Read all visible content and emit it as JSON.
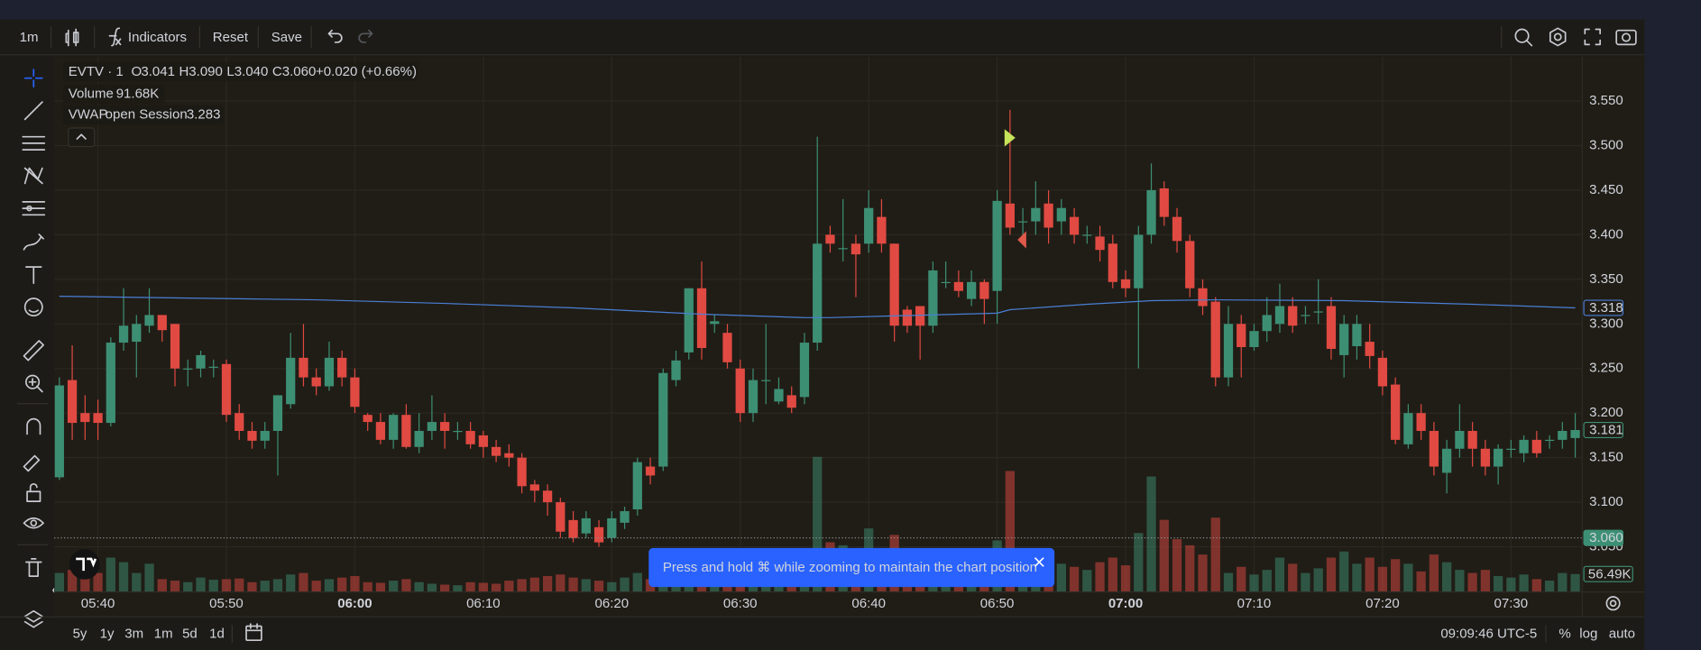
{
  "toolbar": {
    "interval": "1m",
    "indicators": "Indicators",
    "reset": "Reset",
    "save": "Save"
  },
  "range_bar": {
    "ranges": [
      "5y",
      "1y",
      "3m",
      "1m",
      "5d",
      "1d"
    ],
    "clock": "09:09:46 UTC-5",
    "percent": "%",
    "log": "log",
    "auto": "auto"
  },
  "toast": {
    "text": "Press and hold ⌘ while zooming to maintain the chart position"
  },
  "chart_data": {
    "type": "candlestick",
    "legend": {
      "symbol": "EVTV · 1",
      "ohlc": [
        {
          "key": "O",
          "value": "3.041"
        },
        {
          "key": "H",
          "value": "3.090"
        },
        {
          "key": "L",
          "value": "3.040"
        },
        {
          "key": "C",
          "value": "3.060"
        }
      ],
      "change": "+0.020 (+0.66%)",
      "volume_name": "Volume",
      "volume_value": "91.68K",
      "vwap_name": "VWAP",
      "vwap_params": "open Session",
      "vwap_value": "3.283"
    },
    "up_color": "#3d8f74",
    "down_color": "#e04a42",
    "vwap_color": "#4a7fd6",
    "open": [
      3.128,
      3.237,
      3.2,
      3.2,
      3.189,
      3.279,
      3.28,
      3.298,
      3.31,
      3.3,
      3.25,
      3.25,
      3.252,
      3.255,
      3.2,
      3.18,
      3.169,
      3.18,
      3.21,
      3.262,
      3.24,
      3.23,
      3.262,
      3.24,
      3.198,
      3.19,
      3.17,
      3.198,
      3.162,
      3.18,
      3.19,
      3.18,
      3.18,
      3.175,
      3.162,
      3.155,
      3.15,
      3.12,
      3.113,
      3.1,
      3.08,
      3.065,
      3.072,
      3.06,
      3.077,
      3.092,
      3.14,
      3.14,
      3.237,
      3.268,
      3.34,
      3.3,
      3.29,
      3.25,
      3.2,
      3.237,
      3.213,
      3.22,
      3.218,
      3.279,
      3.4,
      3.385,
      3.39,
      3.39,
      3.42,
      3.39,
      3.316,
      3.32,
      3.298,
      3.347,
      3.347,
      3.328,
      3.347,
      3.337,
      3.435,
      3.415,
      3.415,
      3.435,
      3.415,
      3.42,
      3.4,
      3.398,
      3.39,
      3.35,
      3.34,
      3.4,
      3.452,
      3.42,
      3.393,
      3.34,
      3.325,
      3.24,
      3.3,
      3.274,
      3.292,
      3.3,
      3.32,
      3.31,
      3.314,
      3.32,
      3.265,
      3.275,
      3.28,
      3.262,
      3.232,
      3.165,
      3.2,
      3.18,
      3.133,
      3.16,
      3.18,
      3.16,
      3.14,
      3.16,
      3.155,
      3.17,
      3.17,
      3.17,
      3.172
    ],
    "high": [
      3.24,
      3.276,
      3.22,
      3.215,
      3.285,
      3.34,
      3.31,
      3.34,
      3.31,
      3.3,
      3.26,
      3.27,
      3.26,
      3.26,
      3.21,
      3.19,
      3.19,
      3.22,
      3.29,
      3.3,
      3.25,
      3.28,
      3.27,
      3.25,
      3.2,
      3.2,
      3.2,
      3.21,
      3.2,
      3.22,
      3.2,
      3.19,
      3.19,
      3.18,
      3.17,
      3.165,
      3.155,
      3.125,
      3.12,
      3.105,
      3.09,
      3.09,
      3.08,
      3.09,
      3.095,
      3.15,
      3.15,
      3.25,
      3.27,
      3.34,
      3.37,
      3.31,
      3.3,
      3.26,
      3.25,
      3.3,
      3.24,
      3.23,
      3.29,
      3.51,
      3.41,
      3.44,
      3.4,
      3.45,
      3.44,
      3.39,
      3.32,
      3.32,
      3.37,
      3.37,
      3.36,
      3.36,
      3.35,
      3.45,
      3.54,
      3.43,
      3.46,
      3.45,
      3.44,
      3.43,
      3.41,
      3.41,
      3.4,
      3.36,
      3.41,
      3.48,
      3.46,
      3.43,
      3.4,
      3.35,
      3.33,
      3.32,
      3.31,
      3.3,
      3.33,
      3.345,
      3.33,
      3.32,
      3.35,
      3.33,
      3.31,
      3.31,
      3.3,
      3.27,
      3.24,
      3.21,
      3.21,
      3.19,
      3.17,
      3.21,
      3.19,
      3.17,
      3.165,
      3.17,
      3.175,
      3.18,
      3.175,
      3.19,
      3.2
    ],
    "low": [
      3.125,
      3.17,
      3.17,
      3.17,
      3.185,
      3.27,
      3.24,
      3.29,
      3.28,
      3.23,
      3.23,
      3.24,
      3.24,
      3.19,
      3.17,
      3.16,
      3.16,
      3.13,
      3.205,
      3.23,
      3.22,
      3.225,
      3.23,
      3.2,
      3.18,
      3.165,
      3.16,
      3.16,
      3.155,
      3.17,
      3.16,
      3.17,
      3.16,
      3.15,
      3.145,
      3.14,
      3.11,
      3.1,
      3.085,
      3.06,
      3.055,
      3.06,
      3.05,
      3.055,
      3.07,
      3.085,
      3.12,
      3.135,
      3.23,
      3.26,
      3.26,
      3.29,
      3.25,
      3.19,
      3.19,
      3.21,
      3.21,
      3.2,
      3.21,
      3.27,
      3.38,
      3.37,
      3.33,
      3.38,
      3.38,
      3.28,
      3.29,
      3.26,
      3.29,
      3.34,
      3.33,
      3.32,
      3.3,
      3.3,
      3.4,
      3.4,
      3.4,
      3.39,
      3.4,
      3.39,
      3.39,
      3.37,
      3.34,
      3.33,
      3.25,
      3.39,
      3.41,
      3.38,
      3.33,
      3.31,
      3.23,
      3.23,
      3.24,
      3.27,
      3.28,
      3.29,
      3.29,
      3.3,
      3.3,
      3.26,
      3.24,
      3.26,
      3.25,
      3.22,
      3.165,
      3.16,
      3.17,
      3.13,
      3.11,
      3.15,
      3.14,
      3.13,
      3.12,
      3.15,
      3.145,
      3.15,
      3.16,
      3.16,
      3.15
    ],
    "close": [
      3.231,
      3.189,
      3.19,
      3.189,
      3.279,
      3.298,
      3.3,
      3.31,
      3.293,
      3.25,
      3.25,
      3.265,
      3.252,
      3.198,
      3.18,
      3.169,
      3.18,
      3.22,
      3.262,
      3.24,
      3.23,
      3.262,
      3.24,
      3.207,
      3.19,
      3.17,
      3.198,
      3.162,
      3.18,
      3.19,
      3.18,
      3.18,
      3.165,
      3.162,
      3.152,
      3.15,
      3.118,
      3.113,
      3.1,
      3.067,
      3.06,
      3.082,
      3.055,
      3.082,
      3.09,
      3.145,
      3.13,
      3.245,
      3.259,
      3.34,
      3.273,
      3.303,
      3.257,
      3.2,
      3.237,
      3.237,
      3.227,
      3.206,
      3.279,
      3.39,
      3.39,
      3.385,
      3.378,
      3.43,
      3.39,
      3.298,
      3.298,
      3.298,
      3.36,
      3.347,
      3.337,
      3.347,
      3.328,
      3.438,
      3.408,
      3.415,
      3.43,
      3.408,
      3.43,
      3.4,
      3.4,
      3.383,
      3.347,
      3.34,
      3.4,
      3.45,
      3.42,
      3.393,
      3.34,
      3.32,
      3.24,
      3.3,
      3.274,
      3.292,
      3.31,
      3.32,
      3.298,
      3.31,
      3.314,
      3.272,
      3.3,
      3.3,
      3.264,
      3.23,
      3.17,
      3.2,
      3.18,
      3.14,
      3.16,
      3.18,
      3.16,
      3.14,
      3.16,
      3.16,
      3.17,
      3.155,
      3.17,
      3.18,
      3.181
    ],
    "volume": [
      60000,
      70000,
      55000,
      60000,
      110000,
      95000,
      60000,
      90000,
      40000,
      35000,
      30000,
      45000,
      38000,
      40000,
      42000,
      30000,
      35000,
      40000,
      55000,
      60000,
      35000,
      40000,
      45000,
      50000,
      30000,
      28000,
      35000,
      40000,
      30000,
      25000,
      22000,
      20000,
      30000,
      28000,
      25000,
      35000,
      40000,
      45000,
      50000,
      55000,
      45000,
      40000,
      35000,
      30000,
      45000,
      60000,
      40000,
      85000,
      70000,
      90000,
      80000,
      45000,
      50000,
      60000,
      55000,
      40000,
      30000,
      35000,
      75000,
      438000,
      160000,
      150000,
      120000,
      205000,
      140000,
      184000,
      100000,
      95000,
      110000,
      70000,
      60000,
      80000,
      90000,
      166000,
      392000,
      130000,
      110000,
      100000,
      90000,
      80000,
      70000,
      95000,
      110000,
      85000,
      190000,
      374000,
      233000,
      170000,
      150000,
      120000,
      240000,
      60000,
      80000,
      55000,
      70000,
      110000,
      90000,
      60000,
      75000,
      110000,
      130000,
      90000,
      110000,
      80000,
      105000,
      90000,
      65000,
      120000,
      95000,
      70000,
      60000,
      70000,
      50000,
      45000,
      55000,
      40000,
      35000,
      60000,
      56490
    ],
    "vwap": {
      "x": [
        0,
        10,
        20,
        30,
        40,
        50,
        58,
        60,
        65,
        73,
        74,
        80,
        85,
        90,
        100,
        110,
        118
      ],
      "values": [
        3.331,
        3.329,
        3.327,
        3.323,
        3.318,
        3.311,
        3.307,
        3.307,
        3.309,
        3.312,
        3.316,
        3.322,
        3.326,
        3.327,
        3.326,
        3.322,
        3.318
      ]
    },
    "xlim": [
      -0.4,
      118.5
    ],
    "xticks": [
      {
        "value": 3,
        "label": "05:40"
      },
      {
        "value": 13,
        "label": "05:50"
      },
      {
        "value": 23,
        "label": "06:00",
        "bold": true
      },
      {
        "value": 33,
        "label": "06:10"
      },
      {
        "value": 43,
        "label": "06:20"
      },
      {
        "value": 53,
        "label": "06:30"
      },
      {
        "value": 63,
        "label": "06:40"
      },
      {
        "value": 73,
        "label": "06:50"
      },
      {
        "value": 83,
        "label": "07:00",
        "bold": true
      },
      {
        "value": 93,
        "label": "07:10"
      },
      {
        "value": 103,
        "label": "07:20"
      },
      {
        "value": 113,
        "label": "07:30"
      }
    ],
    "ylim": [
      3.0,
      3.6
    ],
    "yticks": [
      {
        "value": 3.05,
        "label": "3.050"
      },
      {
        "value": 3.1,
        "label": "3.100"
      },
      {
        "value": 3.15,
        "label": "3.150"
      },
      {
        "value": 3.2,
        "label": "3.200"
      },
      {
        "value": 3.25,
        "label": "3.250"
      },
      {
        "value": 3.3,
        "label": "3.300"
      },
      {
        "value": 3.35,
        "label": "3.350"
      },
      {
        "value": 3.4,
        "label": "3.400"
      },
      {
        "value": 3.45,
        "label": "3.450"
      },
      {
        "value": 3.5,
        "label": "3.500"
      },
      {
        "value": 3.55,
        "label": "3.550"
      }
    ],
    "grid": true,
    "price_labels": [
      {
        "value": 3.318,
        "label": "3.318",
        "color": "#4a7fd6",
        "style": "outline"
      },
      {
        "value": 3.181,
        "label": "3.181",
        "color": "#3d8f74",
        "style": "outline"
      },
      {
        "value": 3.06,
        "label": "3.060",
        "color": "#3d8f74",
        "style": "filled",
        "line": "dotted"
      }
    ],
    "volume_label": {
      "label": "56.49K",
      "color": "#3d8f74"
    }
  }
}
